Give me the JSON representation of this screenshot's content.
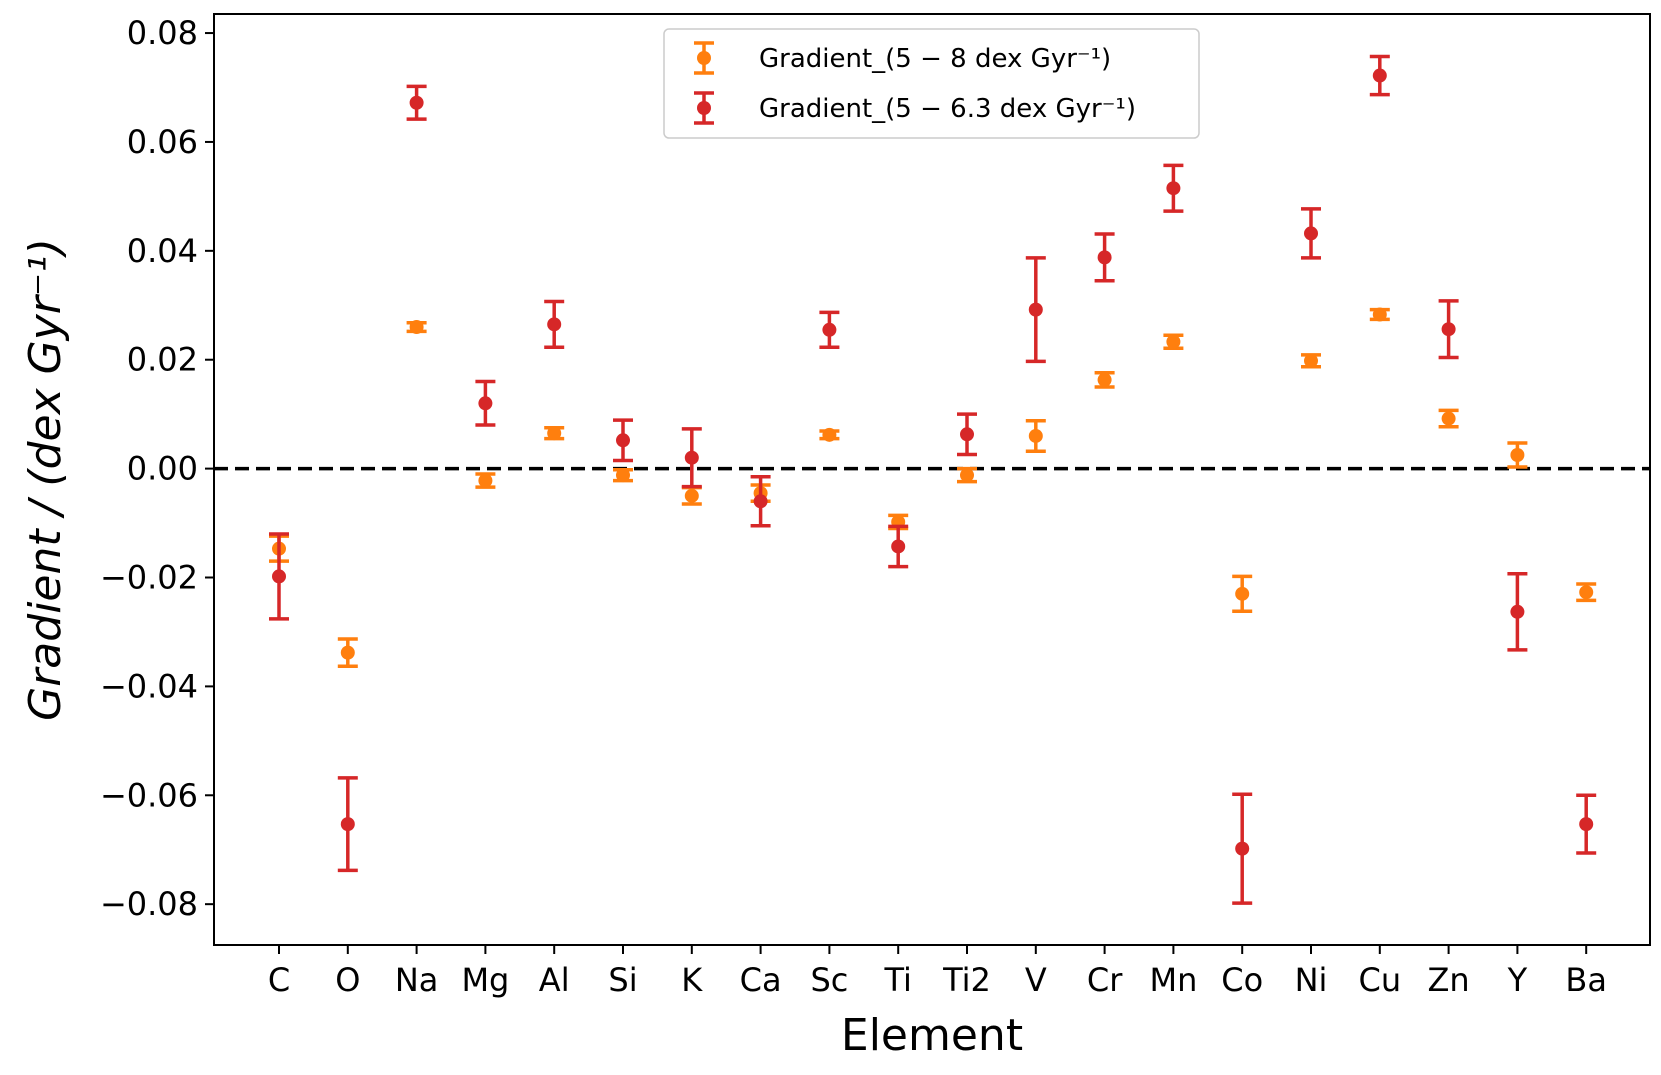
{
  "chart_data": {
    "type": "scatter",
    "categories": [
      "C",
      "O",
      "Na",
      "Mg",
      "Al",
      "Si",
      "K",
      "Ca",
      "Sc",
      "Ti",
      "Ti2",
      "V",
      "Cr",
      "Mn",
      "Co",
      "Ni",
      "Cu",
      "Zn",
      "Y",
      "Ba"
    ],
    "xlabel": "Element",
    "ylabel": "Gradient / (dex Gyr⁻¹)",
    "ylim": [
      -0.0875,
      0.0835
    ],
    "yticks": [
      -0.08,
      -0.06,
      -0.04,
      -0.02,
      0.0,
      0.02,
      0.04,
      0.06,
      0.08
    ],
    "ytick_labels": [
      "−0.08",
      "−0.06",
      "−0.04",
      "−0.02",
      "0.00",
      "0.02",
      "0.04",
      "0.06",
      "0.08"
    ],
    "reference_line": {
      "y": 0.0,
      "style": "dashed",
      "color": "#000000"
    },
    "legend_position": "upper-center",
    "series": [
      {
        "name": "Gradient_(5 − 8 dex Gyr⁻¹)",
        "color": "#ff7f0e",
        "values": [
          -0.0147,
          -0.0338,
          0.026,
          -0.0022,
          0.0065,
          -0.0012,
          -0.005,
          -0.0045,
          0.0062,
          -0.0098,
          -0.0012,
          0.006,
          0.0163,
          0.0233,
          -0.023,
          0.0198,
          0.0283,
          0.0092,
          0.0025,
          -0.0227
        ],
        "errors": [
          0.0023,
          0.0025,
          0.0008,
          0.0012,
          0.001,
          0.001,
          0.0015,
          0.0015,
          0.0007,
          0.0012,
          0.0012,
          0.0028,
          0.0013,
          0.0012,
          0.0032,
          0.0011,
          0.0009,
          0.0015,
          0.0022,
          0.0015
        ]
      },
      {
        "name": "Gradient_(5 − 6.3 dex Gyr⁻¹)",
        "color": "#d62728",
        "values": [
          -0.0198,
          -0.0653,
          0.0672,
          0.012,
          0.0265,
          0.0052,
          0.002,
          -0.006,
          0.0255,
          -0.0143,
          0.0063,
          0.0292,
          0.0388,
          0.0515,
          -0.0698,
          0.0432,
          0.0722,
          0.0256,
          -0.0263,
          -0.0653
        ],
        "errors": [
          0.0078,
          0.0085,
          0.003,
          0.004,
          0.0042,
          0.0037,
          0.0053,
          0.0045,
          0.0032,
          0.0037,
          0.0037,
          0.0095,
          0.0043,
          0.0042,
          0.01,
          0.0045,
          0.0035,
          0.0052,
          0.007,
          0.0053
        ]
      }
    ]
  }
}
